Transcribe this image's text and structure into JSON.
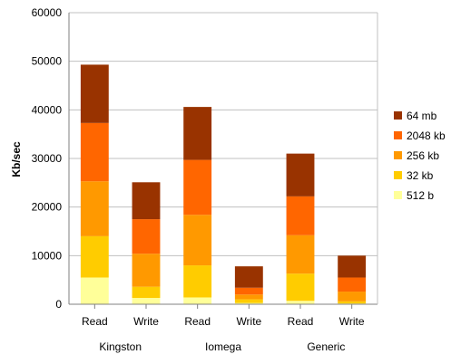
{
  "chart_data": {
    "type": "bar",
    "stacked": true,
    "categories": [
      "Read",
      "Write",
      "Read",
      "Write",
      "Read",
      "Write"
    ],
    "groups": [
      {
        "label": "Kingston",
        "categories": [
          "Read",
          "Write"
        ]
      },
      {
        "label": "Iomega",
        "categories": [
          "Read",
          "Write"
        ]
      },
      {
        "label": "Generic",
        "categories": [
          "Read",
          "Write"
        ]
      }
    ],
    "series": [
      {
        "name": "512 b",
        "color": "#ffff99",
        "values": [
          5500,
          1300,
          1400,
          250,
          700,
          150
        ]
      },
      {
        "name": "32 kb",
        "color": "#ffcc00",
        "values": [
          8500,
          2300,
          6600,
          750,
          5600,
          450
        ]
      },
      {
        "name": "256 kb",
        "color": "#ff9900",
        "values": [
          11300,
          6800,
          10400,
          1000,
          7900,
          2000
        ]
      },
      {
        "name": "2048 kb",
        "color": "#ff6600",
        "values": [
          12000,
          7100,
          11300,
          1400,
          8000,
          2900
        ]
      },
      {
        "name": "64 mb",
        "color": "#993300",
        "values": [
          12000,
          7600,
          10900,
          4400,
          8800,
          4500
        ]
      }
    ],
    "xlabel": "",
    "ylabel": "Kb/sec",
    "ylim": [
      0,
      60000
    ],
    "yticks": [
      0,
      10000,
      20000,
      30000,
      40000,
      50000,
      60000
    ],
    "grid": true,
    "legend_position": "right"
  }
}
